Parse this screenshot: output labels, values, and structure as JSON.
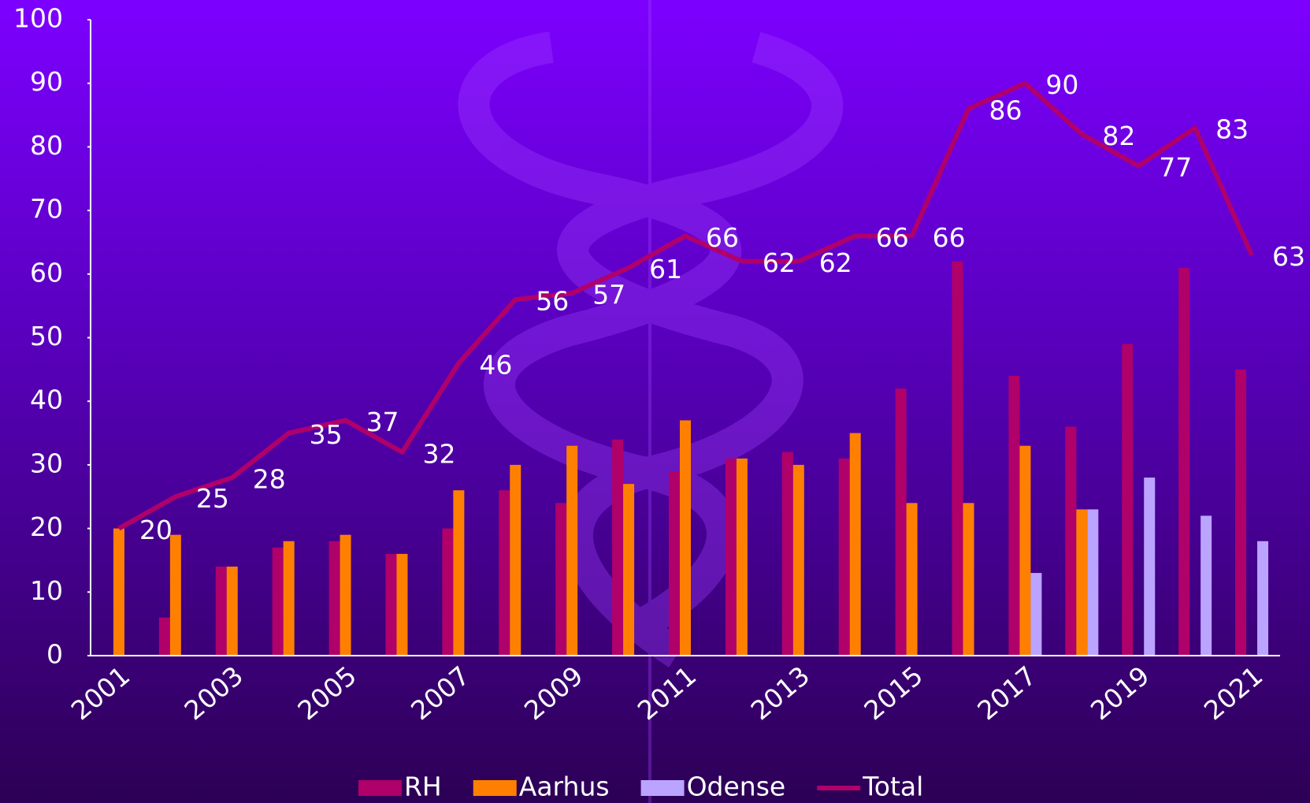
{
  "chart_data": {
    "type": "bar",
    "categories": [
      "2001",
      null,
      "2003",
      null,
      "2005",
      null,
      "2007",
      null,
      "2009",
      null,
      "2011",
      null,
      "2013",
      null,
      "2015",
      null,
      "2017",
      null,
      "2019",
      null,
      "2021"
    ],
    "series": [
      {
        "name": "RH",
        "color": "#b0006a",
        "values": [
          null,
          6,
          14,
          17,
          18,
          16,
          20,
          26,
          24,
          34,
          29,
          31,
          32,
          31,
          42,
          62,
          44,
          36,
          49,
          61,
          45
        ]
      },
      {
        "name": "Aarhus",
        "color": "#ff8000",
        "values": [
          20,
          19,
          14,
          18,
          19,
          16,
          26,
          30,
          33,
          27,
          37,
          31,
          30,
          35,
          24,
          24,
          33,
          23,
          null,
          null,
          null
        ]
      },
      {
        "name": "Odense",
        "color": "#bba4ff",
        "values": [
          null,
          null,
          null,
          null,
          null,
          null,
          null,
          null,
          null,
          null,
          null,
          null,
          null,
          null,
          null,
          null,
          13,
          23,
          28,
          22,
          18
        ]
      },
      {
        "name": "Total",
        "color": "#b0006a",
        "type": "line",
        "data_labels": true,
        "values": [
          20,
          25,
          28,
          35,
          37,
          32,
          46,
          56,
          57,
          61,
          66,
          62,
          62,
          66,
          66,
          86,
          90,
          82,
          77,
          83,
          63
        ]
      }
    ],
    "ylim": [
      0,
      100
    ],
    "yticks": [
      0,
      10,
      20,
      30,
      40,
      50,
      60,
      70,
      80,
      90,
      100
    ],
    "grid": false,
    "legend": "bottom"
  }
}
